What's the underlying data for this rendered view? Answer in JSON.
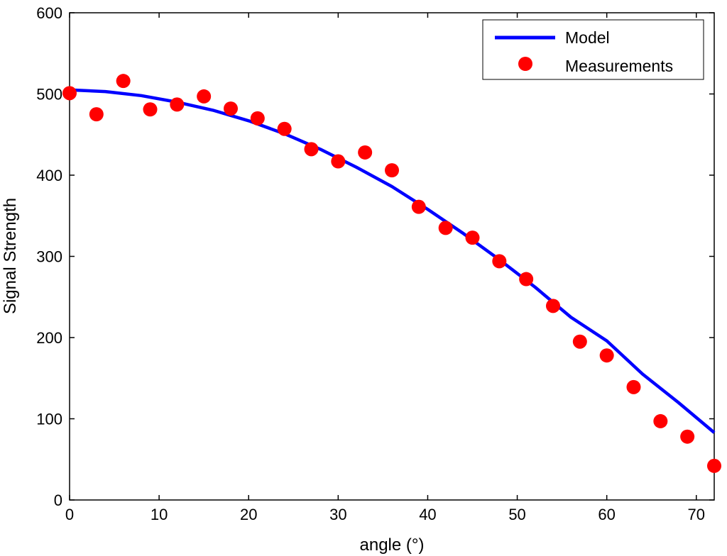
{
  "chart_data": {
    "type": "line",
    "title": "",
    "xlabel": "angle (°)",
    "ylabel": "Signal Strength",
    "xlim": [
      0,
      72
    ],
    "ylim": [
      0,
      600
    ],
    "xticks": [
      0,
      10,
      20,
      30,
      40,
      50,
      60,
      70
    ],
    "yticks": [
      0,
      100,
      200,
      300,
      400,
      500,
      600
    ],
    "grid": false,
    "legend_position": "top-right",
    "series": [
      {
        "name": "Model",
        "kind": "line",
        "color": "#0000ff",
        "x": [
          0,
          4,
          8,
          12,
          16,
          20,
          24,
          28,
          32,
          36,
          40,
          44,
          48,
          52,
          56,
          60,
          64,
          68,
          72
        ],
        "y": [
          505,
          503,
          498,
          490,
          480,
          467,
          451,
          432,
          410,
          386,
          358,
          328,
          296,
          262,
          225,
          196,
          155,
          120,
          83
        ]
      },
      {
        "name": "Measurements",
        "kind": "scatter",
        "color": "#ff0000",
        "x": [
          0,
          3,
          6,
          9,
          12,
          15,
          18,
          21,
          24,
          27,
          30,
          33,
          36,
          39,
          42,
          45,
          48,
          51,
          54,
          57,
          60,
          63,
          66,
          69,
          72
        ],
        "y": [
          501,
          475,
          516,
          481,
          487,
          497,
          482,
          470,
          457,
          432,
          417,
          428,
          406,
          361,
          335,
          323,
          294,
          272,
          239,
          195,
          178,
          139,
          97,
          78,
          42
        ]
      }
    ]
  }
}
